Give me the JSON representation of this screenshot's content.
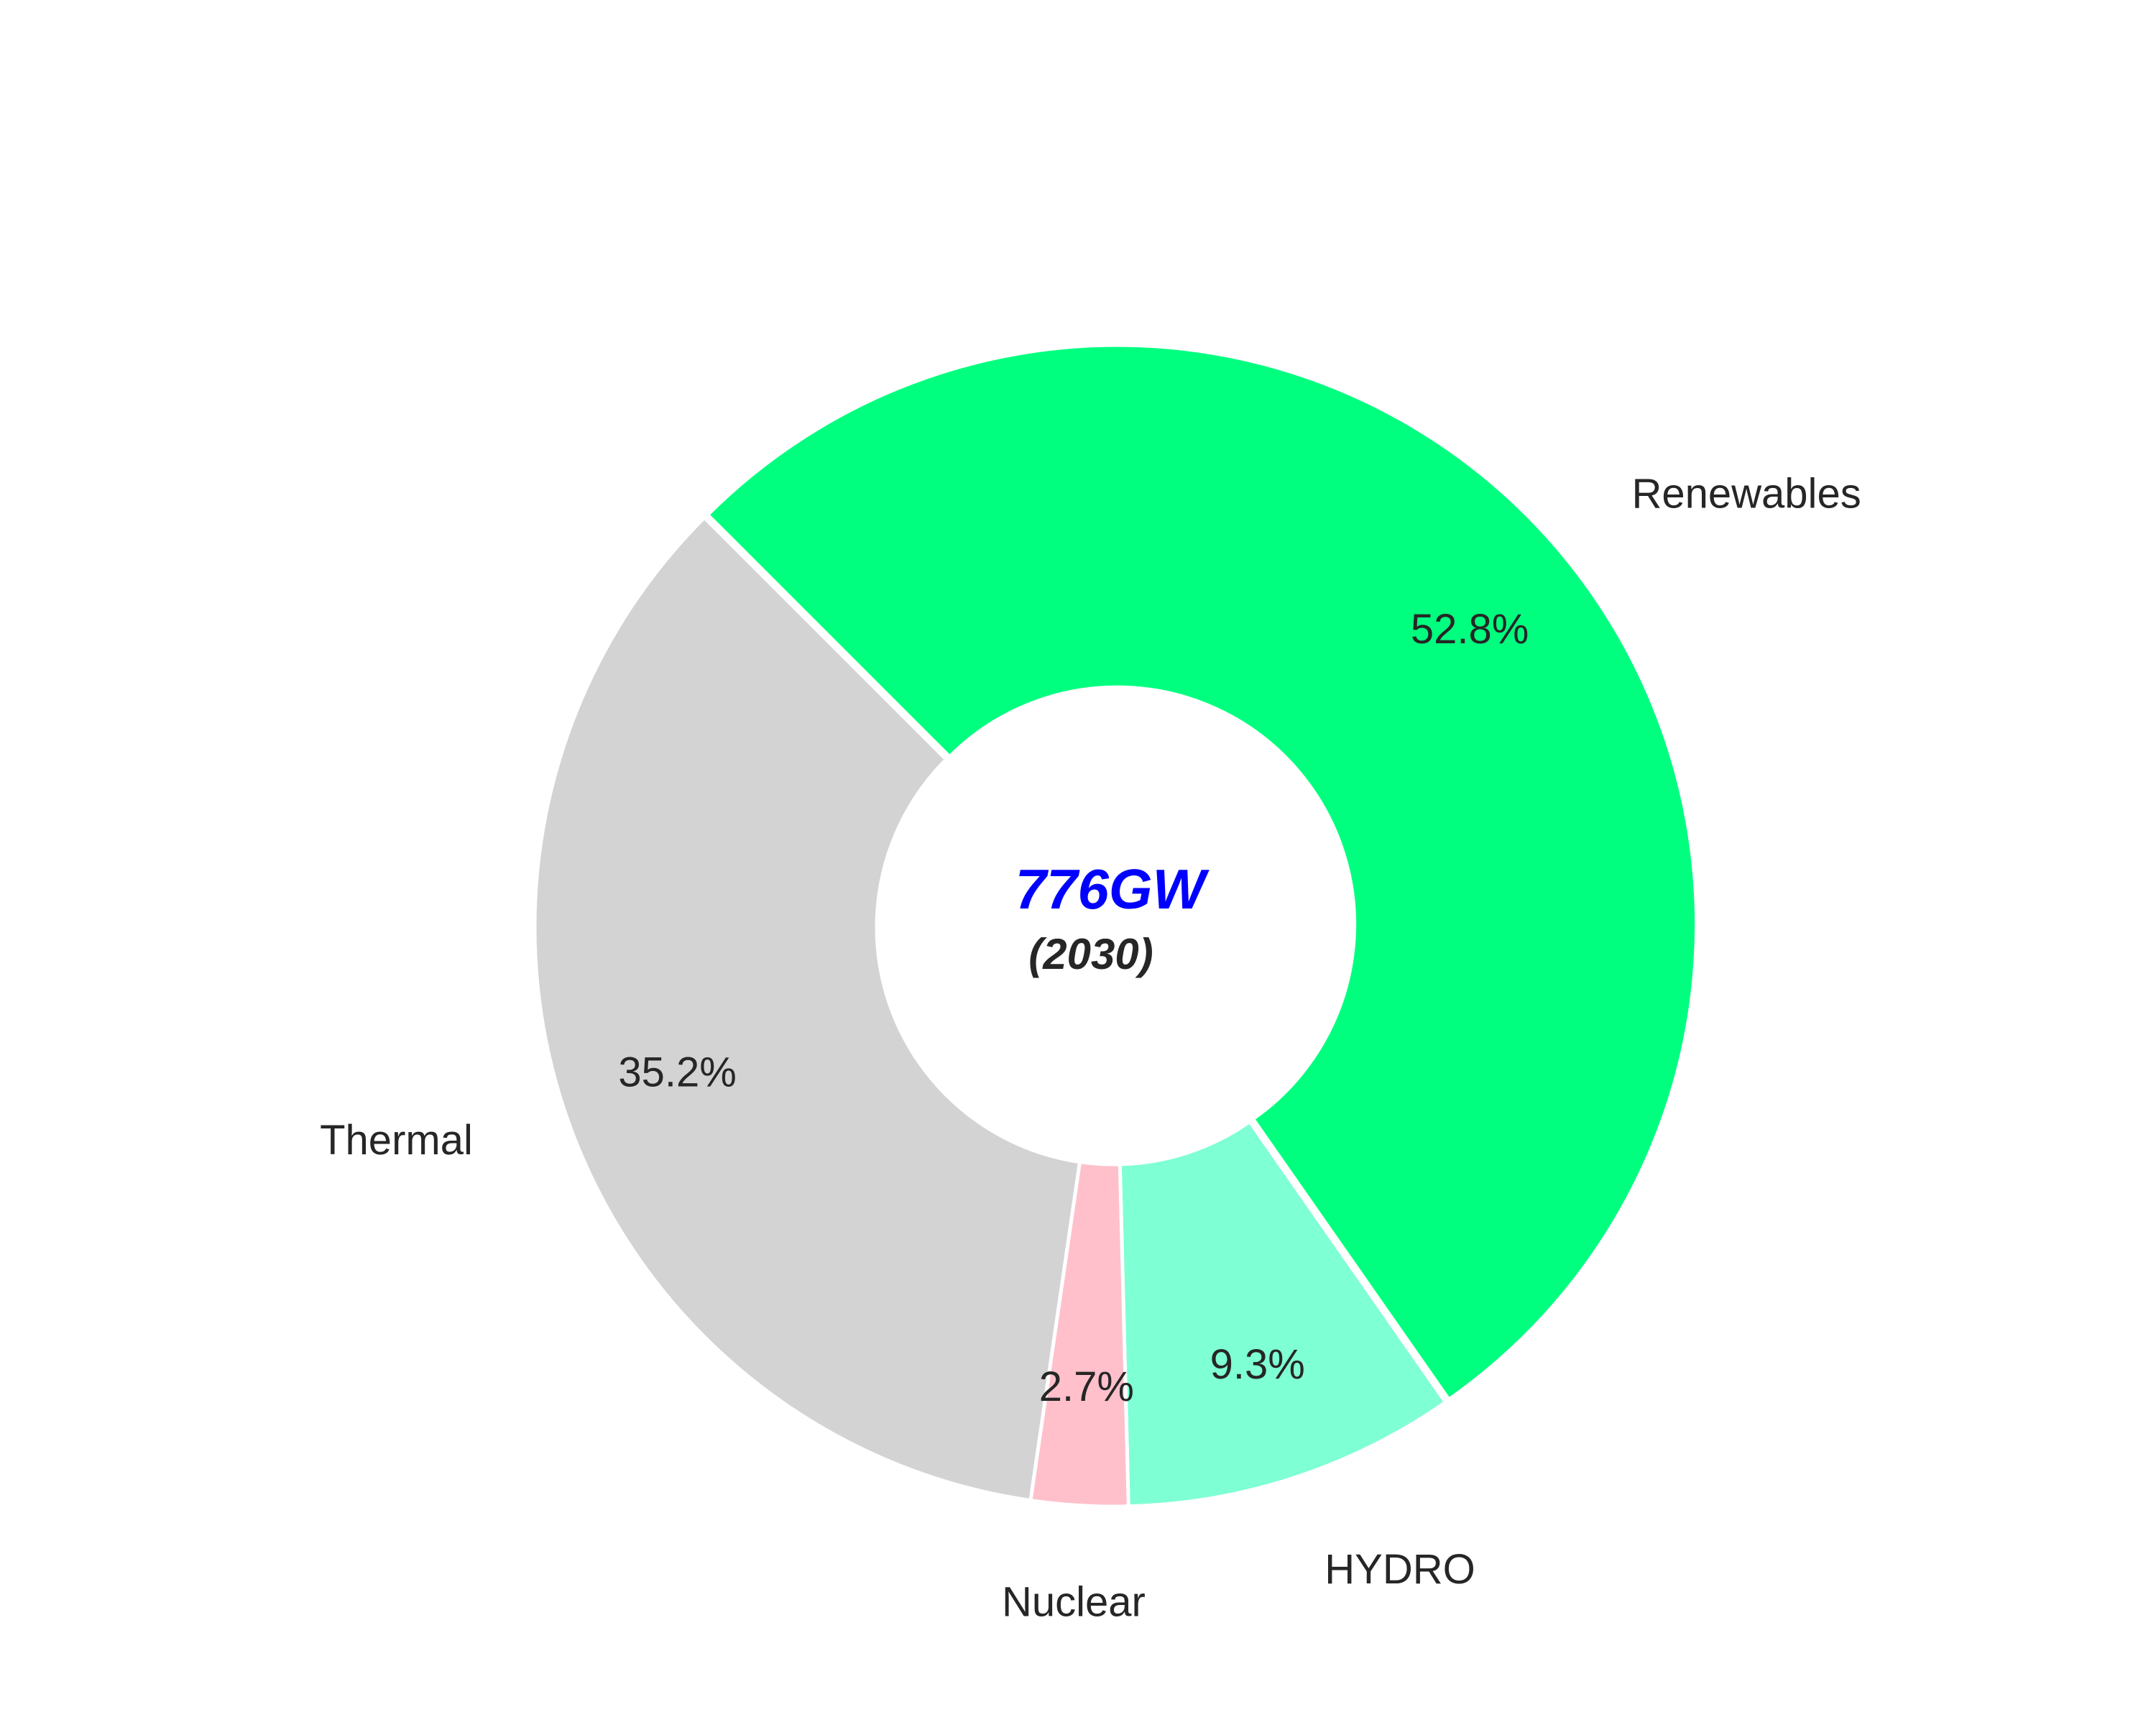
{
  "chart_data": {
    "type": "pie",
    "variant": "donut",
    "center_text": "776GW",
    "center_subtext": "(2030)",
    "center_text_color": "#0000ff",
    "slices": [
      {
        "label": "Renewables",
        "value": 52.8,
        "pct_label": "52.8%",
        "color": "#00ff7f"
      },
      {
        "label": "HYDRO",
        "value": 9.3,
        "pct_label": "9.3%",
        "color": "#7fffd4"
      },
      {
        "label": "Nuclear",
        "value": 2.7,
        "pct_label": "2.7%",
        "color": "#ffc0cb"
      },
      {
        "label": "Thermal",
        "value": 35.2,
        "pct_label": "35.2%",
        "color": "#d3d3d3"
      }
    ],
    "legend": "none"
  }
}
